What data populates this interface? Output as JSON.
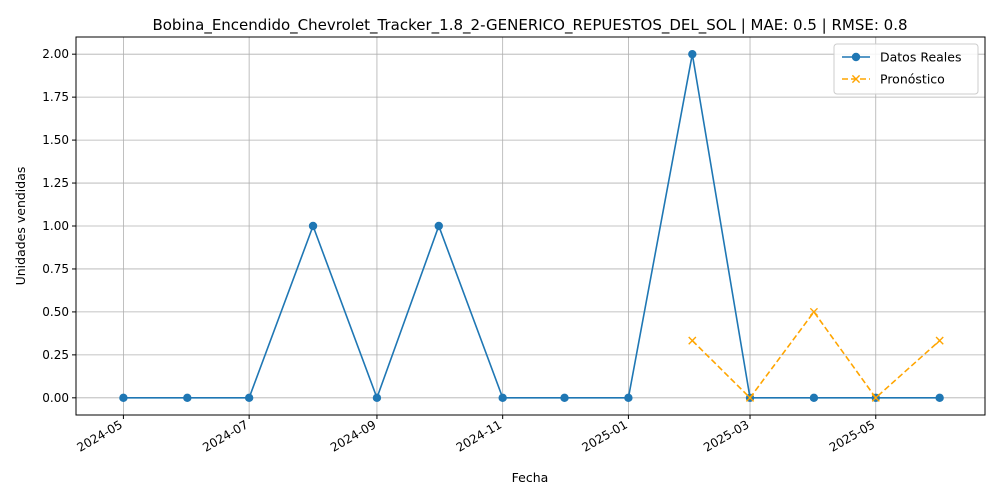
{
  "chart_data": {
    "type": "line",
    "title": "Bobina_Encendido_Chevrolet_Tracker_1.8_2-GENERICO_REPUESTOS_DEL_SOL | MAE: 0.5 | RMSE: 0.8",
    "xlabel": "Fecha",
    "ylabel": "Unidades vendidas",
    "xlim": [
      "2024-04-08",
      "2025-06-23"
    ],
    "ylim": [
      -0.1,
      2.1
    ],
    "grid": true,
    "legend_position": "top-right",
    "x_ticks": [
      "2024-05",
      "2024-07",
      "2024-09",
      "2024-11",
      "2025-01",
      "2025-03",
      "2025-05"
    ],
    "y_ticks": [
      "0.00",
      "0.25",
      "0.50",
      "0.75",
      "1.00",
      "1.25",
      "1.50",
      "1.75",
      "2.00"
    ],
    "series": [
      {
        "name": "Datos Reales",
        "color": "#1f77b4",
        "marker": "circle",
        "line_style": "solid",
        "x": [
          "2024-05-01",
          "2024-06-01",
          "2024-07-01",
          "2024-08-01",
          "2024-09-01",
          "2024-10-01",
          "2024-11-01",
          "2024-12-01",
          "2025-01-01",
          "2025-02-01",
          "2025-03-01",
          "2025-04-01",
          "2025-05-01",
          "2025-06-01"
        ],
        "y": [
          0,
          0,
          0,
          1,
          0,
          1,
          0,
          0,
          0,
          2,
          0,
          0,
          0,
          0
        ]
      },
      {
        "name": "Pronóstico",
        "color": "#ffa500",
        "marker": "x",
        "line_style": "dashed",
        "x": [
          "2025-02-01",
          "2025-03-01",
          "2025-04-01",
          "2025-05-01",
          "2025-06-01"
        ],
        "y": [
          0.333,
          0,
          0.5,
          0,
          0.333
        ]
      }
    ]
  }
}
